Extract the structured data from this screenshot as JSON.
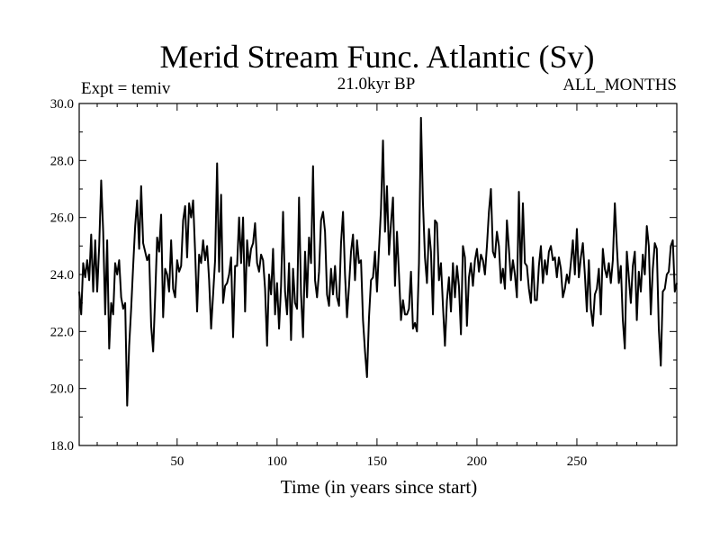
{
  "chart_data": {
    "type": "line",
    "title": "Merid Stream Func. Atlantic (Sv)",
    "subtitle_left": "Expt = temiv",
    "subtitle_center": "21.0kyr BP",
    "subtitle_right": "ALL_MONTHS",
    "xlabel": "Time (in years since start)",
    "ylabel": "",
    "xlim": [
      1,
      300
    ],
    "ylim": [
      18,
      30
    ],
    "x_ticks": [
      50,
      100,
      150,
      200,
      250
    ],
    "y_ticks": [
      18,
      20,
      22,
      24,
      26,
      28,
      30
    ],
    "y_tick_labels": [
      "18.0",
      "20.0",
      "22.0",
      "24.0",
      "26.0",
      "28.0",
      "30.0"
    ],
    "grid": false,
    "series": [
      {
        "x_start": 1,
        "x_step": 1,
        "color": "#000000",
        "values": [
          23.4,
          22.6,
          24.4,
          23.9,
          24.5,
          23.8,
          25.4,
          23.4,
          25.2,
          23.4,
          25.0,
          27.3,
          25.5,
          22.6,
          25.2,
          21.4,
          23.0,
          22.6,
          24.4,
          24.0,
          24.5,
          23.2,
          22.8,
          23.0,
          19.4,
          21.5,
          22.8,
          24.3,
          25.7,
          26.6,
          24.9,
          27.1,
          25.1,
          24.8,
          24.5,
          24.7,
          22.2,
          21.3,
          23.2,
          25.3,
          24.8,
          26.1,
          22.5,
          24.2,
          24.0,
          23.4,
          25.2,
          23.5,
          23.2,
          24.5,
          24.1,
          24.3,
          25.9,
          26.4,
          24.6,
          26.5,
          26.0,
          26.6,
          24.8,
          22.7,
          24.7,
          24.4,
          25.2,
          24.5,
          25.0,
          23.8,
          22.1,
          23.3,
          24.5,
          27.9,
          24.1,
          26.8,
          23.0,
          23.6,
          23.7,
          24.0,
          24.6,
          21.8,
          24.3,
          24.3,
          26.0,
          24.4,
          26.0,
          22.7,
          25.2,
          24.3,
          24.9,
          25.1,
          25.8,
          24.4,
          24.1,
          24.7,
          24.5,
          23.5,
          21.5,
          24.0,
          23.3,
          24.9,
          22.6,
          23.7,
          22.1,
          23.6,
          26.2,
          23.4,
          22.6,
          24.4,
          21.7,
          24.2,
          23.0,
          22.8,
          26.7,
          23.3,
          21.8,
          24.8,
          23.2,
          25.3,
          24.4,
          27.8,
          23.8,
          23.2,
          24.1,
          25.9,
          26.2,
          25.5,
          23.3,
          22.9,
          24.2,
          23.3,
          24.3,
          23.2,
          22.9,
          25.1,
          26.2,
          24.0,
          22.5,
          23.6,
          24.8,
          25.4,
          23.8,
          25.2,
          24.4,
          24.5,
          22.4,
          21.3,
          20.4,
          22.5,
          23.8,
          23.9,
          24.8,
          23.4,
          24.9,
          26.3,
          28.7,
          25.5,
          27.1,
          24.7,
          25.8,
          26.7,
          23.6,
          25.5,
          24.0,
          22.4,
          23.1,
          22.6,
          22.6,
          22.8,
          24.1,
          22.1,
          22.3,
          22.0,
          24.4,
          29.5,
          26.5,
          24.6,
          23.7,
          25.6,
          24.8,
          22.6,
          25.9,
          25.8,
          23.8,
          24.4,
          22.9,
          21.5,
          23.1,
          23.9,
          22.7,
          24.4,
          23.2,
          24.3,
          23.6,
          21.9,
          25.0,
          24.6,
          22.2,
          23.9,
          24.4,
          23.6,
          24.5,
          24.9,
          24.1,
          24.7,
          24.5,
          24.0,
          25.0,
          26.2,
          27.0,
          24.8,
          24.6,
          25.5,
          25.0,
          23.7,
          24.2,
          23.5,
          25.9,
          24.9,
          23.8,
          24.5,
          24.0,
          23.2,
          26.9,
          23.8,
          26.5,
          24.4,
          24.3,
          23.5,
          23.0,
          24.6,
          23.1,
          23.1,
          24.3,
          25.0,
          23.7,
          24.5,
          24.0,
          24.8,
          25.0,
          24.5,
          24.6,
          23.9,
          24.6,
          24.2,
          23.2,
          23.5,
          24.0,
          23.7,
          24.4,
          25.2,
          24.0,
          25.6,
          23.9,
          24.6,
          25.1,
          24.0,
          22.7,
          24.5,
          22.8,
          22.2,
          23.3,
          23.5,
          24.2,
          22.6,
          24.9,
          24.2,
          23.9,
          24.4,
          23.7,
          24.5,
          26.5,
          25.0,
          23.7,
          24.3,
          22.4,
          21.4,
          24.8,
          23.9,
          23.0,
          24.3,
          24.8,
          22.4,
          24.1,
          23.4,
          24.7,
          24.0,
          25.7,
          25.0,
          22.6,
          24.2,
          25.1,
          24.9,
          22.1,
          20.8,
          23.4,
          23.5,
          24.0,
          24.1,
          25.0,
          25.2,
          23.4,
          23.7
        ]
      }
    ]
  }
}
